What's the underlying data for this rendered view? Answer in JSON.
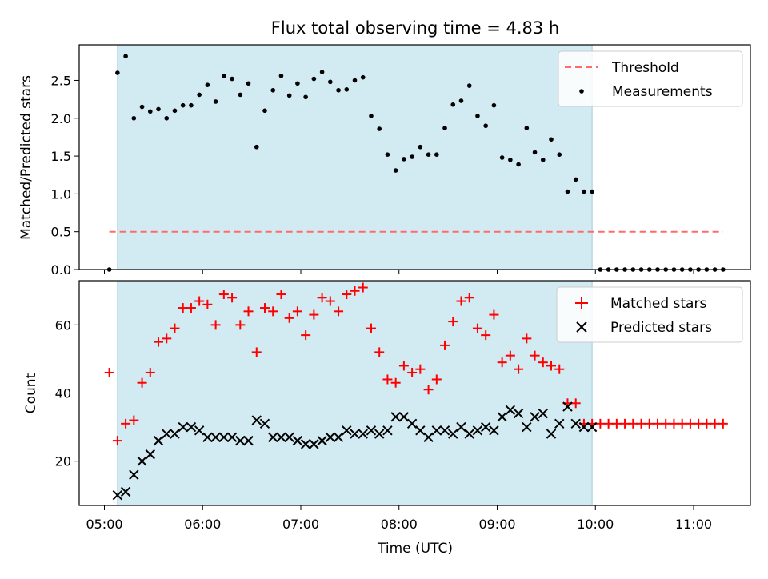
{
  "chart_data": [
    {
      "type": "scatter",
      "title": "Flux total observing time = 4.83 h",
      "ylabel": "Matched/Predicted stars",
      "xlabel": "",
      "ylim": [
        0,
        2.97
      ],
      "yticks": [
        "0.0",
        "0.5",
        "1.0",
        "1.5",
        "2.0",
        "2.5"
      ],
      "ytick_values": [
        0,
        0.5,
        1.0,
        1.5,
        2.0,
        2.5
      ],
      "shaded_span": {
        "start": "05:08",
        "end": "09:58",
        "color": "#add8e6"
      },
      "legend": {
        "placement": "top-right",
        "entries": [
          "Threshold",
          "Measurements"
        ]
      },
      "series": [
        {
          "name": "Threshold",
          "kind": "dashed-line",
          "color": "#ff6b6b",
          "y": 0.5,
          "x_start": "05:03",
          "x_end": "11:18"
        },
        {
          "name": "Measurements",
          "kind": "dot",
          "color": "#000000",
          "x": [
            "05:03",
            "05:08",
            "05:13",
            "05:18",
            "05:23",
            "05:28",
            "05:33",
            "05:38",
            "05:43",
            "05:48",
            "05:53",
            "05:58",
            "06:03",
            "06:08",
            "06:13",
            "06:18",
            "06:23",
            "06:28",
            "06:33",
            "06:38",
            "06:43",
            "06:48",
            "06:53",
            "06:58",
            "07:03",
            "07:08",
            "07:13",
            "07:18",
            "07:23",
            "07:28",
            "07:33",
            "07:38",
            "07:43",
            "07:48",
            "07:53",
            "07:58",
            "08:03",
            "08:08",
            "08:13",
            "08:18",
            "08:23",
            "08:28",
            "08:33",
            "08:38",
            "08:43",
            "08:48",
            "08:53",
            "08:58",
            "09:03",
            "09:08",
            "09:13",
            "09:18",
            "09:23",
            "09:28",
            "09:33",
            "09:38",
            "09:43",
            "09:48",
            "09:53",
            "09:58",
            "10:03",
            "10:08",
            "10:13",
            "10:18",
            "10:23",
            "10:28",
            "10:33",
            "10:38",
            "10:43",
            "10:48",
            "10:53",
            "10:58",
            "11:03",
            "11:08",
            "11:13",
            "11:18"
          ],
          "y": [
            0.0,
            2.6,
            2.82,
            2.0,
            2.15,
            2.09,
            2.12,
            2.0,
            2.1,
            2.17,
            2.17,
            2.31,
            2.44,
            2.22,
            2.56,
            2.52,
            2.31,
            2.46,
            1.62,
            2.1,
            2.37,
            2.56,
            2.3,
            2.46,
            2.28,
            2.52,
            2.61,
            2.48,
            2.37,
            2.38,
            2.5,
            2.54,
            2.03,
            1.86,
            1.52,
            1.31,
            1.46,
            1.49,
            1.62,
            1.52,
            1.52,
            1.87,
            2.18,
            2.23,
            2.43,
            2.03,
            1.9,
            2.17,
            1.48,
            1.45,
            1.39,
            1.87,
            1.55,
            1.45,
            1.72,
            1.52,
            1.03,
            1.19,
            1.03,
            1.03,
            0,
            0,
            0,
            0,
            0,
            0,
            0,
            0,
            0,
            0,
            0,
            0,
            0,
            0,
            0,
            0
          ]
        }
      ]
    },
    {
      "type": "scatter",
      "title": "",
      "ylabel": "Count",
      "xlabel": "Time (UTC)",
      "ylim": [
        7,
        73
      ],
      "yticks": [
        "20",
        "40",
        "60"
      ],
      "ytick_values": [
        20,
        40,
        60
      ],
      "xticks": [
        "05:00",
        "06:00",
        "07:00",
        "08:00",
        "09:00",
        "10:00",
        "11:00"
      ],
      "shaded_span": {
        "start": "05:08",
        "end": "09:58",
        "color": "#add8e6"
      },
      "legend": {
        "placement": "top-right",
        "entries": [
          "Matched stars",
          "Predicted stars"
        ]
      },
      "series": [
        {
          "name": "Matched stars",
          "kind": "plus",
          "color": "#ff0000",
          "x": [
            "05:03",
            "05:08",
            "05:13",
            "05:18",
            "05:23",
            "05:28",
            "05:33",
            "05:38",
            "05:43",
            "05:48",
            "05:53",
            "05:58",
            "06:03",
            "06:08",
            "06:13",
            "06:18",
            "06:23",
            "06:28",
            "06:33",
            "06:38",
            "06:43",
            "06:48",
            "06:53",
            "06:58",
            "07:03",
            "07:08",
            "07:13",
            "07:18",
            "07:23",
            "07:28",
            "07:33",
            "07:38",
            "07:43",
            "07:48",
            "07:53",
            "07:58",
            "08:03",
            "08:08",
            "08:13",
            "08:18",
            "08:23",
            "08:28",
            "08:33",
            "08:38",
            "08:43",
            "08:48",
            "08:53",
            "08:58",
            "09:03",
            "09:08",
            "09:13",
            "09:18",
            "09:23",
            "09:28",
            "09:33",
            "09:38",
            "09:43",
            "09:48",
            "09:53",
            "09:58",
            "10:03",
            "10:08",
            "10:13",
            "10:18",
            "10:23",
            "10:28",
            "10:33",
            "10:38",
            "10:43",
            "10:48",
            "10:53",
            "10:58",
            "11:03",
            "11:08",
            "11:13",
            "11:18"
          ],
          "y": [
            46,
            26,
            31,
            32,
            43,
            46,
            55,
            56,
            59,
            65,
            65,
            67,
            66,
            60,
            69,
            68,
            60,
            64,
            52,
            65,
            64,
            69,
            62,
            64,
            57,
            63,
            68,
            67,
            64,
            69,
            70,
            71,
            59,
            52,
            44,
            43,
            48,
            46,
            47,
            41,
            44,
            54,
            61,
            67,
            68,
            59,
            57,
            63,
            49,
            51,
            47,
            56,
            51,
            49,
            48,
            47,
            37,
            37,
            31,
            31,
            31,
            31,
            31,
            31,
            31,
            31,
            31,
            31,
            31,
            31,
            31,
            31,
            31,
            31,
            31,
            31
          ]
        },
        {
          "name": "Predicted stars",
          "kind": "cross",
          "color": "#000000",
          "x": [
            "05:08",
            "05:13",
            "05:18",
            "05:23",
            "05:28",
            "05:33",
            "05:38",
            "05:43",
            "05:48",
            "05:53",
            "05:58",
            "06:03",
            "06:08",
            "06:13",
            "06:18",
            "06:23",
            "06:28",
            "06:33",
            "06:38",
            "06:43",
            "06:48",
            "06:53",
            "06:58",
            "07:03",
            "07:08",
            "07:13",
            "07:18",
            "07:23",
            "07:28",
            "07:33",
            "07:38",
            "07:43",
            "07:48",
            "07:53",
            "07:58",
            "08:03",
            "08:08",
            "08:13",
            "08:18",
            "08:23",
            "08:28",
            "08:33",
            "08:38",
            "08:43",
            "08:48",
            "08:53",
            "08:58",
            "09:03",
            "09:08",
            "09:13",
            "09:18",
            "09:23",
            "09:28",
            "09:33",
            "09:38",
            "09:43",
            "09:48",
            "09:53",
            "09:58"
          ],
          "y": [
            10,
            11,
            16,
            20,
            22,
            26,
            28,
            28,
            30,
            30,
            29,
            27,
            27,
            27,
            27,
            26,
            26,
            32,
            31,
            27,
            27,
            27,
            26,
            25,
            25,
            26,
            27,
            27,
            29,
            28,
            28,
            29,
            28,
            29,
            33,
            33,
            31,
            29,
            27,
            29,
            29,
            28,
            30,
            28,
            29,
            30,
            29,
            33,
            35,
            34,
            30,
            33,
            34,
            28,
            31,
            36,
            31,
            30,
            30
          ]
        }
      ]
    }
  ]
}
